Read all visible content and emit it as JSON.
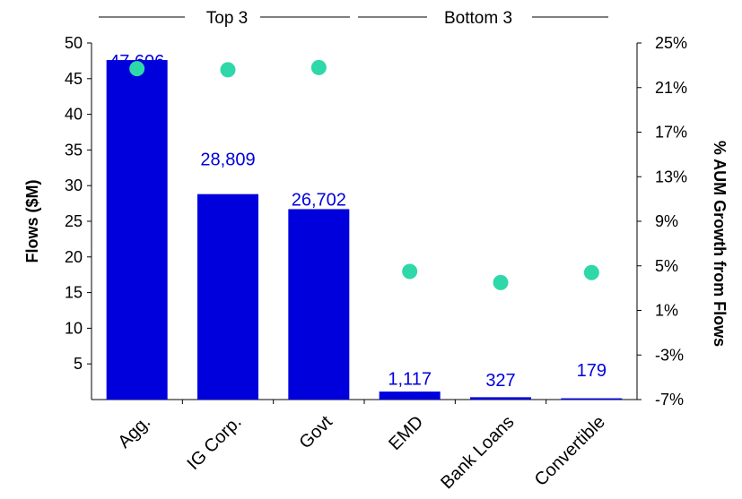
{
  "chart_data": {
    "type": "bar",
    "categories": [
      "Agg.",
      "IG Corp.",
      "Govt",
      "EMD",
      "Bank Loans",
      "Convertible"
    ],
    "series": [
      {
        "name": "Flows ($M)",
        "type": "bar",
        "axis": "left",
        "values": [
          47.606,
          28.809,
          26.702,
          1.117,
          0.327,
          0.179
        ],
        "labels": [
          "47,606",
          "28,809",
          "26,702",
          "1,117",
          "327",
          "179"
        ]
      },
      {
        "name": "% AUM Growth from Flows",
        "type": "scatter",
        "axis": "right",
        "values": [
          22.7,
          22.6,
          22.8,
          4.5,
          3.5,
          4.4
        ]
      }
    ],
    "ylabel": "Flows ($M)",
    "ylabel_right": "% AUM Growth from Flows",
    "ylim": [
      0,
      50
    ],
    "yticks": [
      "5",
      "10",
      "15",
      "20",
      "25",
      "30",
      "35",
      "40",
      "45",
      "50"
    ],
    "ylim_right": [
      -7,
      25
    ],
    "yticks_right": [
      "-7%",
      "-3%",
      "1%",
      "5%",
      "9%",
      "13%",
      "17%",
      "21%",
      "25%"
    ],
    "groups": [
      {
        "label": "Top 3",
        "categories": [
          "Agg.",
          "IG Corp.",
          "Govt"
        ]
      },
      {
        "label": "Bottom 3",
        "categories": [
          "EMD",
          "Bank Loans",
          "Convertible"
        ]
      }
    ],
    "grid": false,
    "colors": {
      "bar": "#0000dc",
      "dot": "#2ed8a8",
      "label": "#0000dc",
      "text": "#000000"
    }
  }
}
